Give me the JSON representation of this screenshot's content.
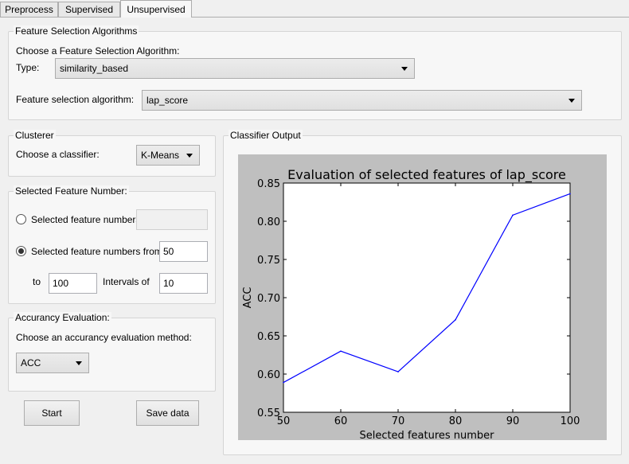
{
  "tabs": [
    {
      "label": "Preprocess"
    },
    {
      "label": "Supervised"
    },
    {
      "label": "Unsupervised"
    }
  ],
  "feature_selection": {
    "group_title": "Feature Selection Algorithms",
    "choose_label": "Choose a Feature Selection Algorithm:",
    "type_label": "Type:",
    "type_value": "similarity_based",
    "algorithm_label": "Feature selection algorithm:",
    "algorithm_value": "lap_score"
  },
  "clusterer": {
    "group_title": "Clusterer",
    "choose_label": "Choose a classifier:",
    "classifier_value": "K-Means"
  },
  "feature_number": {
    "group_title": "Selected Feature Number:",
    "option1_label": "Selected feature numbers:",
    "option1_value": "",
    "option2_label": "Selected feature numbers from",
    "from_value": "50",
    "to_label": "to",
    "to_value": "100",
    "interval_label": "Intervals of",
    "interval_value": "10",
    "selected_option": 2
  },
  "accuracy": {
    "group_title": "Accurancy Evaluation:",
    "choose_label": "Choose an accurancy evaluation method:",
    "method_value": "ACC"
  },
  "buttons": {
    "start_label": "Start",
    "save_label": "Save data"
  },
  "output": {
    "group_title": "Classifier Output"
  },
  "colors": {
    "line": "#0000ff",
    "plot_bg": "#bfbfbf"
  },
  "chart_data": {
    "type": "line",
    "title": "Evaluation of selected features of lap_score",
    "xlabel": "Selected features number",
    "ylabel": "ACC",
    "x": [
      50,
      60,
      70,
      80,
      90,
      100
    ],
    "series": [
      {
        "name": "ACC",
        "values": [
          0.589,
          0.63,
          0.603,
          0.671,
          0.808,
          0.836
        ]
      }
    ],
    "xlim": [
      50,
      100
    ],
    "ylim": [
      0.55,
      0.85
    ],
    "xticks": [
      "50",
      "60",
      "70",
      "80",
      "90",
      "100"
    ],
    "yticks": [
      "0.55",
      "0.60",
      "0.65",
      "0.70",
      "0.75",
      "0.80",
      "0.85"
    ],
    "grid": false
  }
}
